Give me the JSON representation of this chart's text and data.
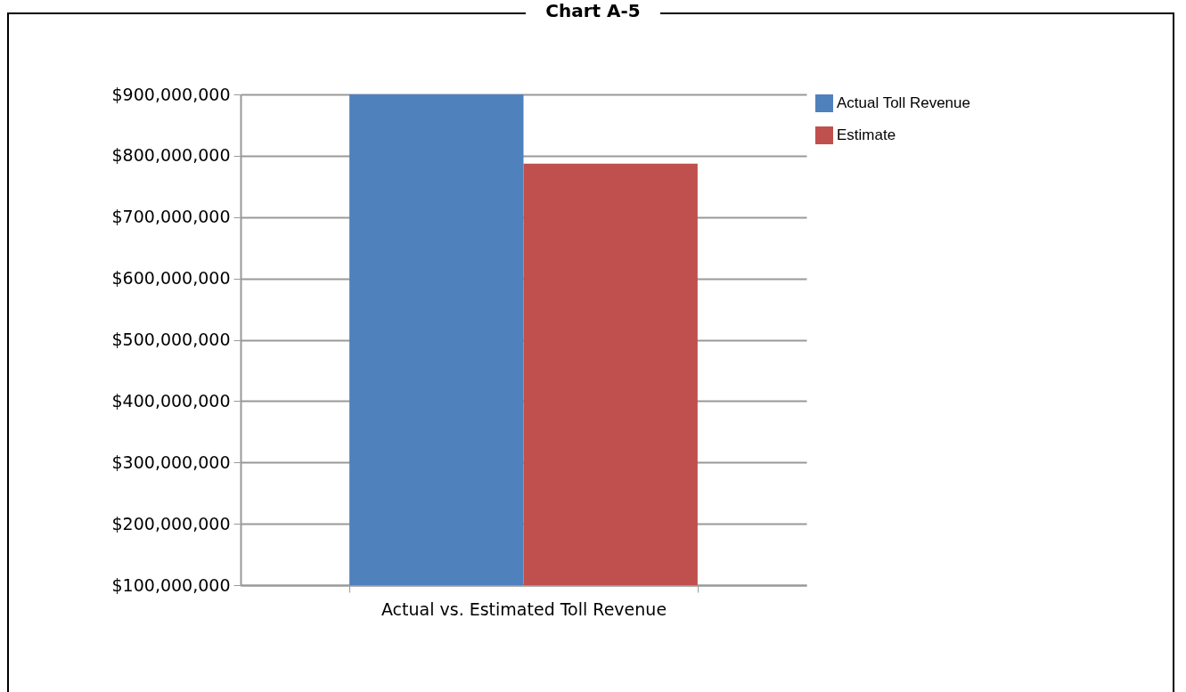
{
  "chart_data": {
    "type": "bar",
    "title": "Chart A-5",
    "categories": [
      "Actual vs. Estimated Toll Revenue"
    ],
    "series": [
      {
        "name": "Actual Toll Revenue",
        "color": "#4f81bd",
        "values": [
          900000000
        ]
      },
      {
        "name": "Estimate",
        "color": "#c0504d",
        "values": [
          787000000
        ]
      }
    ],
    "ylim": [
      100000000,
      900000000
    ],
    "yticks": [
      {
        "value": 100000000,
        "label": "$100,000,000"
      },
      {
        "value": 200000000,
        "label": "$200,000,000"
      },
      {
        "value": 300000000,
        "label": "$300,000,000"
      },
      {
        "value": 400000000,
        "label": "$400,000,000"
      },
      {
        "value": 500000000,
        "label": "$500,000,000"
      },
      {
        "value": 600000000,
        "label": "$600,000,000"
      },
      {
        "value": 700000000,
        "label": "$700,000,000"
      },
      {
        "value": 800000000,
        "label": "$800,000,000"
      },
      {
        "value": 900000000,
        "label": "$900,000,000"
      }
    ],
    "grid": "y",
    "legend": "top right"
  }
}
